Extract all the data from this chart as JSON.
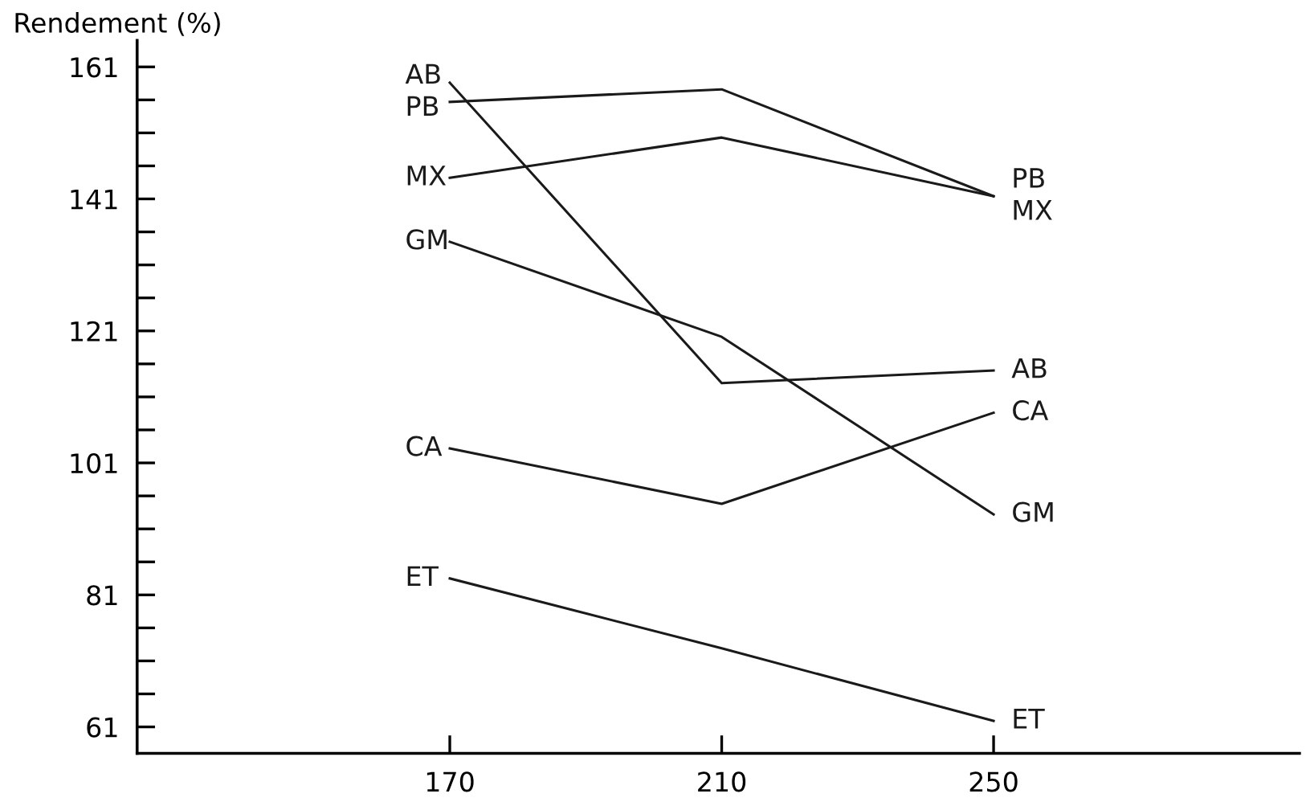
{
  "chart_data": {
    "type": "line",
    "ylabel": "Rendement (%)",
    "x": [
      170,
      210,
      250
    ],
    "series": [
      {
        "name": "AB",
        "color": "#1a1a1a",
        "values": [
          158.6,
          113.1,
          115.0
        ]
      },
      {
        "name": "PB",
        "color": "#1a1a1a",
        "values": [
          155.7,
          157.6,
          141.4
        ]
      },
      {
        "name": "MX",
        "color": "#1a1a1a",
        "values": [
          144.2,
          150.3,
          141.4
        ]
      },
      {
        "name": "GM",
        "color": "#1a1a1a",
        "values": [
          134.5,
          120.1,
          93.2
        ]
      },
      {
        "name": "CA",
        "color": "#1a1a1a",
        "values": [
          103.2,
          94.8,
          108.6
        ]
      },
      {
        "name": "ET",
        "color": "#1a1a1a",
        "values": [
          83.5,
          72.9,
          61.9
        ]
      }
    ],
    "xlim": [
      124,
      295
    ],
    "xticks": [
      170,
      210,
      250
    ],
    "ylim": [
      57,
      165
    ],
    "yticks": [
      61,
      {
        "value": 66,
        "label": null
      },
      {
        "value": 71,
        "label": null
      },
      {
        "value": 76,
        "label": null
      },
      81,
      {
        "value": 86,
        "label": null
      },
      {
        "value": 91,
        "label": null
      },
      {
        "value": 96,
        "label": null
      },
      101,
      {
        "value": 106,
        "label": null
      },
      {
        "value": 111,
        "label": null
      },
      {
        "value": 116,
        "label": null
      },
      121,
      {
        "value": 126,
        "label": null
      },
      {
        "value": 131,
        "label": null
      },
      {
        "value": 136,
        "label": null
      },
      141,
      {
        "value": 146,
        "label": null
      },
      {
        "value": 151,
        "label": null
      },
      {
        "value": 156,
        "label": null
      },
      161
    ],
    "grid": false,
    "legend": false,
    "marker": "none",
    "line_style": "solid"
  }
}
